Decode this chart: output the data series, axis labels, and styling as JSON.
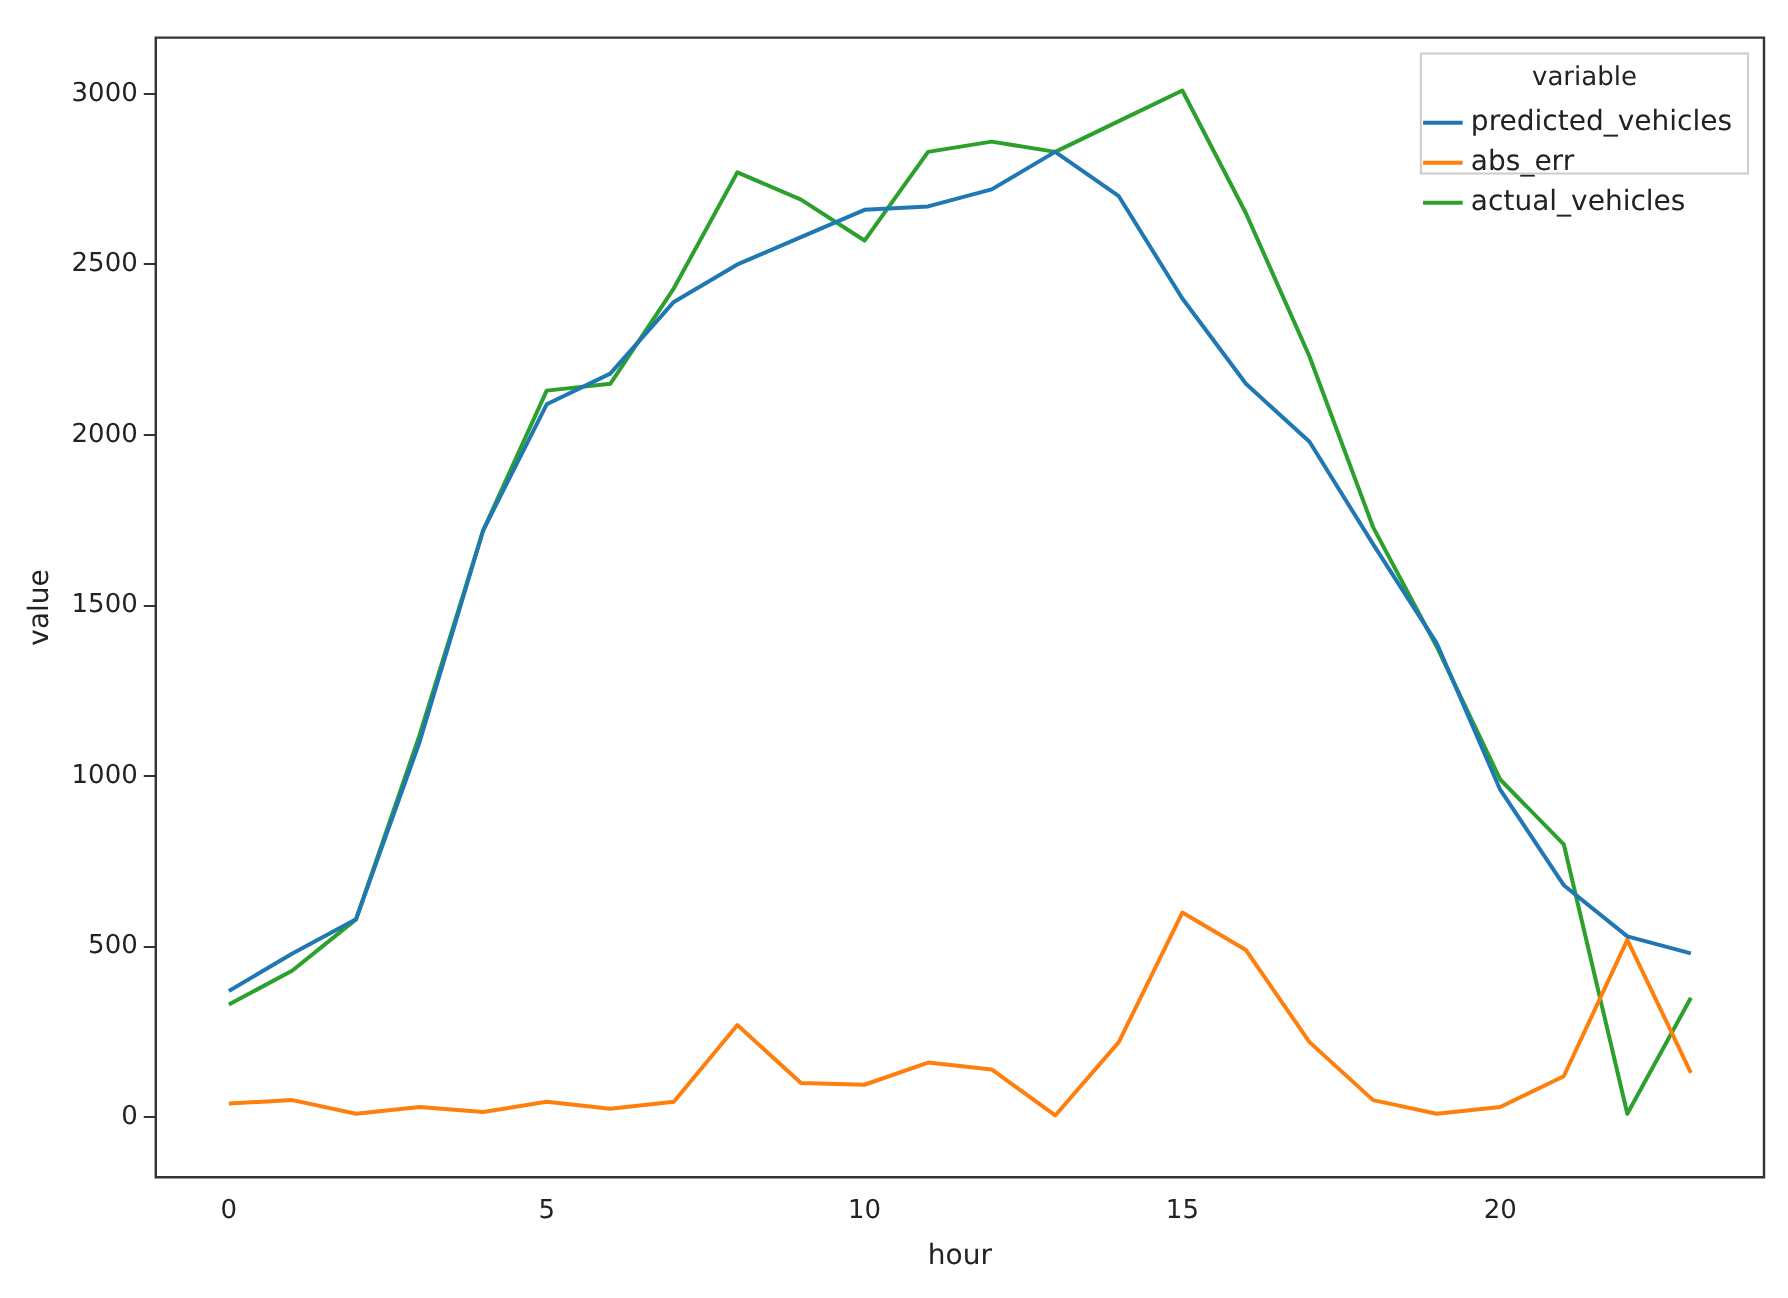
{
  "chart_data": {
    "type": "line",
    "xlabel": "hour",
    "ylabel": "value",
    "legend_title": "variable",
    "legend": "top right",
    "grid": false,
    "marker": "none",
    "line_style": "solid",
    "x": [
      0,
      1,
      2,
      3,
      4,
      5,
      6,
      7,
      8,
      9,
      10,
      11,
      12,
      13,
      14,
      15,
      16,
      17,
      18,
      19,
      20,
      21,
      22,
      23
    ],
    "xlim": [
      -1.15,
      24.15
    ],
    "xticks": [
      0,
      5,
      10,
      15,
      20
    ],
    "ylim": [
      -176,
      3165
    ],
    "yticks": [
      0,
      500,
      1000,
      1500,
      2000,
      2500,
      3000
    ],
    "series": [
      {
        "name": "predicted_vehicles",
        "color": "#1f77b4",
        "values": [
          370,
          480,
          580,
          1100,
          1720,
          2090,
          2180,
          2390,
          2500,
          2580,
          2660,
          2670,
          2720,
          2830,
          2700,
          2400,
          2150,
          1980,
          1680,
          1390,
          960,
          680,
          530,
          480
        ]
      },
      {
        "name": "abs_err",
        "color": "#ff7f0e",
        "values": [
          40,
          50,
          10,
          30,
          15,
          45,
          25,
          45,
          270,
          100,
          95,
          160,
          140,
          5,
          220,
          600,
          490,
          220,
          50,
          10,
          30,
          120,
          520,
          130
        ]
      },
      {
        "name": "actual_vehicles",
        "color": "#2ca02c",
        "values": [
          330,
          430,
          580,
          1120,
          1720,
          2130,
          2150,
          2430,
          2770,
          2690,
          2570,
          2830,
          2860,
          2830,
          2920,
          3010,
          2650,
          2230,
          1730,
          1380,
          990,
          800,
          10,
          350
        ]
      }
    ]
  }
}
